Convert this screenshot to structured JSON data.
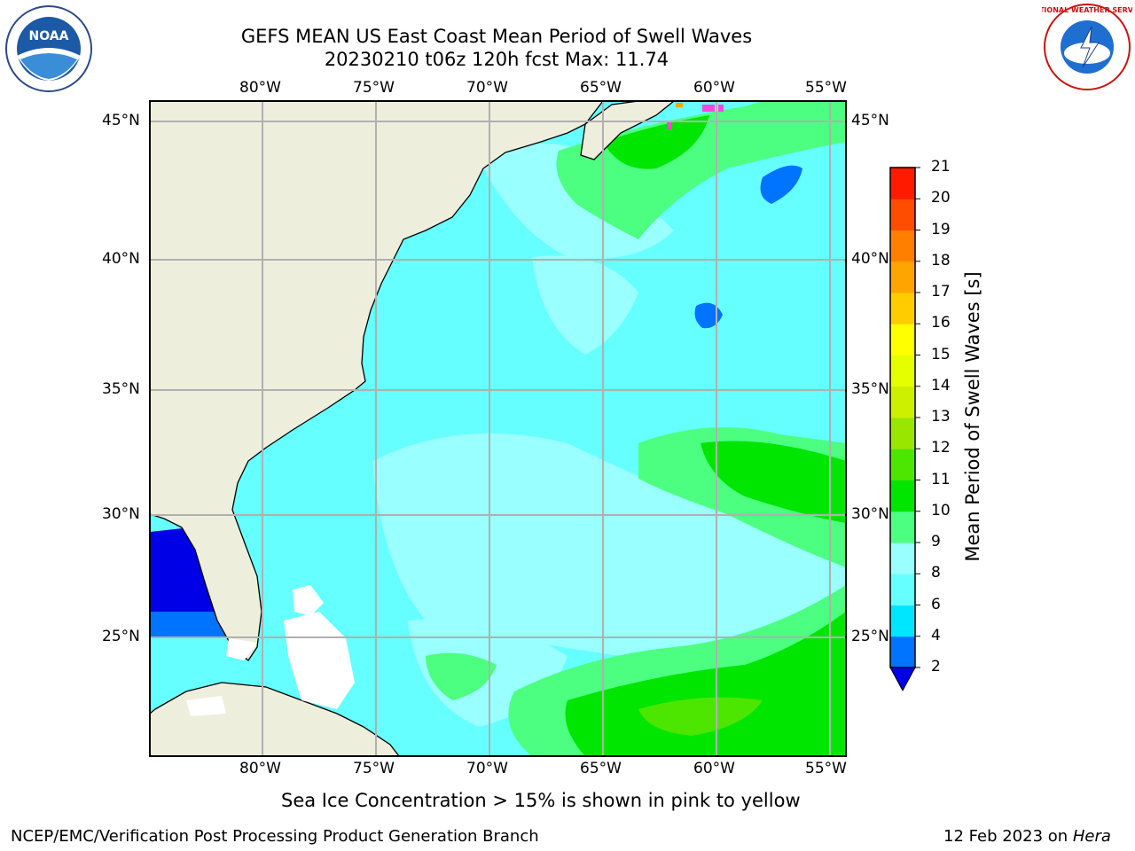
{
  "title": {
    "line1": "GEFS MEAN US East Coast Mean Period of Swell Waves",
    "line2": "20230210 t06z 120h fcst   Max: 11.74"
  },
  "logos": {
    "left": "NOAA",
    "right": "NATIONAL WEATHER SERVICE"
  },
  "axes": {
    "lon_ticks": [
      "80°W",
      "75°W",
      "70°W",
      "65°W",
      "60°W",
      "55°W"
    ],
    "lat_ticks": [
      "45°N",
      "40°N",
      "35°N",
      "30°N",
      "25°N"
    ]
  },
  "colorbar": {
    "label": "Mean Period of Swell Waves [s]",
    "ticks": [
      "2",
      "4",
      "6",
      "8",
      "9",
      "10",
      "11",
      "12",
      "13",
      "14",
      "15",
      "16",
      "17",
      "18",
      "19",
      "20",
      "21"
    ],
    "colors": [
      "#0000e6",
      "#0073ff",
      "#00e6ff",
      "#66ffff",
      "#99ffff",
      "#4dff80",
      "#00e600",
      "#4de600",
      "#99e600",
      "#ccf000",
      "#e6ff00",
      "#ffff00",
      "#ffcc00",
      "#ffa500",
      "#ff8000",
      "#ff4d00",
      "#ff1a00",
      "#ff0000"
    ]
  },
  "map_colors": {
    "land": "#eeeedd",
    "grid": "#b0b0b0",
    "coast": "#000000"
  },
  "note": "Sea Ice Concentration > 15% is shown in pink to yellow",
  "footer": {
    "left": "NCEP/EMC/Verification Post Processing Product Generation Branch",
    "right_date": "12 Feb 2023 on ",
    "right_host": "Hera"
  }
}
